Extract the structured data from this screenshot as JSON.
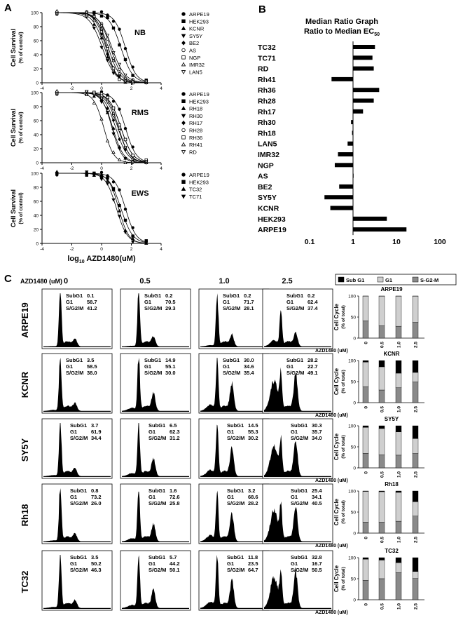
{
  "panel_a": {
    "letter": "A",
    "ylabel_line1": "Cell Survival",
    "ylabel_line2": "(% of control)",
    "xlabel_prefix": "log",
    "xlabel_sub": "10",
    "xlabel_rest": " AZD1480(uM)",
    "x_ticks": [
      "-4",
      "-2",
      "0",
      "2",
      "4"
    ],
    "y_ticks": [
      "0",
      "20",
      "40",
      "60",
      "80",
      "100"
    ],
    "charts": [
      {
        "title": "NB",
        "legend": [
          "ARPE19",
          "HEK293",
          "KCNR",
          "SY5Y",
          "BE2",
          "AS",
          "NGP",
          "IMR32",
          "LAN5"
        ],
        "markers": [
          "circle",
          "square",
          "tri",
          "tri-down",
          "diamond",
          "circle-open",
          "square-open",
          "tri-open",
          "tri-down-open"
        ]
      },
      {
        "title": "RMS",
        "legend": [
          "ARPE19",
          "HEK293",
          "RH18",
          "RH30",
          "RH17",
          "RH28",
          "RH36",
          "RH41",
          "RD"
        ],
        "markers": [
          "circle",
          "square",
          "tri",
          "tri-down",
          "diamond",
          "circle-open",
          "square-open",
          "tri-open",
          "tri-down-open"
        ]
      },
      {
        "title": "EWS",
        "legend": [
          "ARPE19",
          "HEK293",
          "TC32",
          "TC71"
        ],
        "markers": [
          "circle",
          "square",
          "tri",
          "tri-down"
        ]
      }
    ]
  },
  "chart_data": [
    {
      "type": "line",
      "title": "NB",
      "xlabel": "log10 AZD1480(uM)",
      "ylabel": "Cell Survival (% of control)",
      "xlim": [
        -4,
        4
      ],
      "ylim": [
        0,
        100
      ],
      "series": [
        {
          "name": "ARPE19",
          "log_ec50": 1.6,
          "hill": 1.2
        },
        {
          "name": "HEK293",
          "log_ec50": 1.3,
          "hill": 1.1
        },
        {
          "name": "KCNR",
          "log_ec50": 0.2,
          "hill": 1.1
        },
        {
          "name": "SY5Y",
          "log_ec50": 0.05,
          "hill": 1.0
        },
        {
          "name": "BE2",
          "log_ec50": 0.3,
          "hill": 1.2
        },
        {
          "name": "AS",
          "log_ec50": 0.6,
          "hill": 1.1
        },
        {
          "name": "NGP",
          "log_ec50": 0.35,
          "hill": 1.3
        },
        {
          "name": "IMR32",
          "log_ec50": 0.45,
          "hill": 1.1
        },
        {
          "name": "LAN5",
          "log_ec50": 0.7,
          "hill": 1.0
        }
      ]
    },
    {
      "type": "line",
      "title": "RMS",
      "xlabel": "log10 AZD1480(uM)",
      "ylabel": "Cell Survival (% of control)",
      "xlim": [
        -4,
        4
      ],
      "ylim": [
        0,
        100
      ],
      "series": [
        {
          "name": "ARPE19",
          "log_ec50": 1.6,
          "hill": 1.2
        },
        {
          "name": "HEK293",
          "log_ec50": 1.3,
          "hill": 1.1
        },
        {
          "name": "RH18",
          "log_ec50": 0.75,
          "hill": 1.2
        },
        {
          "name": "RH30",
          "log_ec50": 0.7,
          "hill": 1.3
        },
        {
          "name": "RH17",
          "log_ec50": 0.95,
          "hill": 1.1
        },
        {
          "name": "RH28",
          "log_ec50": 1.15,
          "hill": 1.2
        },
        {
          "name": "RH36",
          "log_ec50": 1.3,
          "hill": 1.1
        },
        {
          "name": "RH41",
          "log_ec50": 0.15,
          "hill": 1.3
        },
        {
          "name": "RD",
          "log_ec50": 1.1,
          "hill": 1.1
        }
      ]
    },
    {
      "type": "line",
      "title": "EWS",
      "xlabel": "log10 AZD1480(uM)",
      "ylabel": "Cell Survival (% of control)",
      "xlim": [
        -4,
        4
      ],
      "ylim": [
        0,
        100
      ],
      "series": [
        {
          "name": "ARPE19",
          "log_ec50": 1.6,
          "hill": 1.2
        },
        {
          "name": "HEK293",
          "log_ec50": 1.3,
          "hill": 1.1
        },
        {
          "name": "TC32",
          "log_ec50": 1.15,
          "hill": 1.3
        },
        {
          "name": "TC71",
          "log_ec50": 1.0,
          "hill": 1.2
        }
      ]
    },
    {
      "type": "bar",
      "orientation": "horizontal",
      "title": "Median Ratio Graph Ratio to Median EC50",
      "xscale": "log",
      "xlim": [
        0.1,
        100
      ],
      "x_ticks": [
        "0.1",
        "1",
        "10",
        "100"
      ],
      "categories": [
        "TC32",
        "TC71",
        "RD",
        "Rh41",
        "Rh36",
        "Rh28",
        "Rh17",
        "Rh30",
        "Rh18",
        "LAN5",
        "IMR32",
        "NGP",
        "AS",
        "BE2",
        "SY5Y",
        "KCNR",
        "HEK293",
        "ARPE19"
      ],
      "values": [
        3.2,
        2.8,
        3.0,
        0.32,
        4.0,
        3.0,
        1.7,
        0.9,
        0.95,
        0.75,
        0.45,
        0.38,
        1.0,
        0.48,
        0.22,
        0.3,
        6.0,
        17.0
      ]
    },
    {
      "type": "bar",
      "stacked": true,
      "title": "ARPE19",
      "ylabel": "Cell Cycle (% of total)",
      "xlabel": "AZD1480 (uM)",
      "categories": [
        "0",
        "0.5",
        "1.0",
        "2.5"
      ],
      "series": [
        {
          "name": "Sub G1",
          "values": [
            0.1,
            0.2,
            0.2,
            0.2
          ]
        },
        {
          "name": "G1",
          "values": [
            58.7,
            70.5,
            71.7,
            62.4
          ]
        },
        {
          "name": "S-G2-M",
          "values": [
            41.2,
            29.3,
            28.1,
            37.4
          ]
        }
      ]
    },
    {
      "type": "bar",
      "stacked": true,
      "title": "KCNR",
      "ylabel": "Cell Cycle (% of total)",
      "xlabel": "AZD1480 (uM)",
      "categories": [
        "0",
        "0.5",
        "1.0",
        "2.5"
      ],
      "series": [
        {
          "name": "Sub G1",
          "values": [
            3.5,
            14.9,
            30.0,
            28.2
          ]
        },
        {
          "name": "G1",
          "values": [
            58.5,
            55.1,
            34.6,
            22.7
          ]
        },
        {
          "name": "S-G2-M",
          "values": [
            38.0,
            30.0,
            35.4,
            49.1
          ]
        }
      ]
    },
    {
      "type": "bar",
      "stacked": true,
      "title": "SY5Y",
      "ylabel": "Cell Cycle (% of total)",
      "xlabel": "AZD1480 (uM)",
      "categories": [
        "0",
        "0.5",
        "1.0",
        "2.5"
      ],
      "series": [
        {
          "name": "Sub G1",
          "values": [
            3.7,
            6.5,
            14.5,
            30.3
          ]
        },
        {
          "name": "G1",
          "values": [
            61.9,
            62.3,
            55.3,
            35.7
          ]
        },
        {
          "name": "S-G2-M",
          "values": [
            34.4,
            31.2,
            30.2,
            34.0
          ]
        }
      ]
    },
    {
      "type": "bar",
      "stacked": true,
      "title": "Rh18",
      "ylabel": "Cell Cycle (% of total)",
      "xlabel": "AZD1480 (uM)",
      "categories": [
        "0",
        "0.5",
        "1.0",
        "2.5"
      ],
      "series": [
        {
          "name": "Sub G1",
          "values": [
            0.8,
            1.6,
            3.2,
            25.4
          ]
        },
        {
          "name": "G1",
          "values": [
            73.2,
            72.6,
            68.6,
            34.1
          ]
        },
        {
          "name": "S-G2-M",
          "values": [
            26.0,
            25.8,
            28.2,
            40.5
          ]
        }
      ]
    },
    {
      "type": "bar",
      "stacked": true,
      "title": "TC32",
      "ylabel": "Cell Cycle (% of total)",
      "xlabel": "AZD1480 (uM)",
      "categories": [
        "0",
        "0.5",
        "1.0",
        "2.5"
      ],
      "series": [
        {
          "name": "Sub G1",
          "values": [
            3.5,
            5.7,
            11.8,
            32.8
          ]
        },
        {
          "name": "G1",
          "values": [
            50.2,
            44.2,
            23.5,
            16.7
          ]
        },
        {
          "name": "S-G2-M",
          "values": [
            46.3,
            50.1,
            64.7,
            50.5
          ]
        }
      ]
    }
  ],
  "panel_b": {
    "letter": "B",
    "title_line1": "Median Ratio Graph",
    "title_line2_main": "Ratio to Median EC",
    "title_line2_sub": "50"
  },
  "panel_c": {
    "letter": "C",
    "dose_label": "AZD1480 (uM)",
    "doses": [
      "0",
      "0.5",
      "1.0",
      "2.5"
    ],
    "legend": [
      "Sub G1",
      "G1",
      "S-G2-M"
    ],
    "legend_colors": [
      "#000000",
      "#cfcfcf",
      "#8a8a8a"
    ],
    "bar_ylabel_line1": "Cell Cycle",
    "bar_ylabel_line2": "(% of total)",
    "bar_xlabel": "AZD1480 (uM)",
    "bar_x_ticks": [
      "0",
      "0.5",
      "1.0",
      "2.5"
    ],
    "bar_y_ticks": [
      "0",
      "50",
      "100"
    ],
    "stat_labels": [
      "SubG1",
      "G1",
      "S/G2/M"
    ],
    "rows": [
      {
        "name": "ARPE19",
        "cells": [
          [
            "0.1",
            "58.7",
            "41.2"
          ],
          [
            "0.2",
            "70.5",
            "29.3"
          ],
          [
            "0.2",
            "71.7",
            "28.1"
          ],
          [
            "0.2",
            "62.4",
            "37.4"
          ]
        ]
      },
      {
        "name": "KCNR",
        "cells": [
          [
            "3.5",
            "58.5",
            "38.0"
          ],
          [
            "14.9",
            "55.1",
            "30.0"
          ],
          [
            "30.0",
            "34.6",
            "35.4"
          ],
          [
            "28.2",
            "22.7",
            "49.1"
          ]
        ]
      },
      {
        "name": "SY5Y",
        "cells": [
          [
            "3.7",
            "61.9",
            "34.4"
          ],
          [
            "6.5",
            "62.3",
            "31.2"
          ],
          [
            "14.5",
            "55.3",
            "30.2"
          ],
          [
            "30.3",
            "35.7",
            "34.0"
          ]
        ]
      },
      {
        "name": "Rh18",
        "cells": [
          [
            "0.8",
            "73.2",
            "26.0"
          ],
          [
            "1.6",
            "72.6",
            "25.8"
          ],
          [
            "3.2",
            "68.6",
            "28.2"
          ],
          [
            "25.4",
            "34.1",
            "40.5"
          ]
        ]
      },
      {
        "name": "TC32",
        "cells": [
          [
            "3.5",
            "50.2",
            "46.3"
          ],
          [
            "5.7",
            "44.2",
            "50.1"
          ],
          [
            "11.8",
            "23.5",
            "64.7"
          ],
          [
            "32.8",
            "16.7",
            "50.5"
          ]
        ]
      }
    ]
  }
}
